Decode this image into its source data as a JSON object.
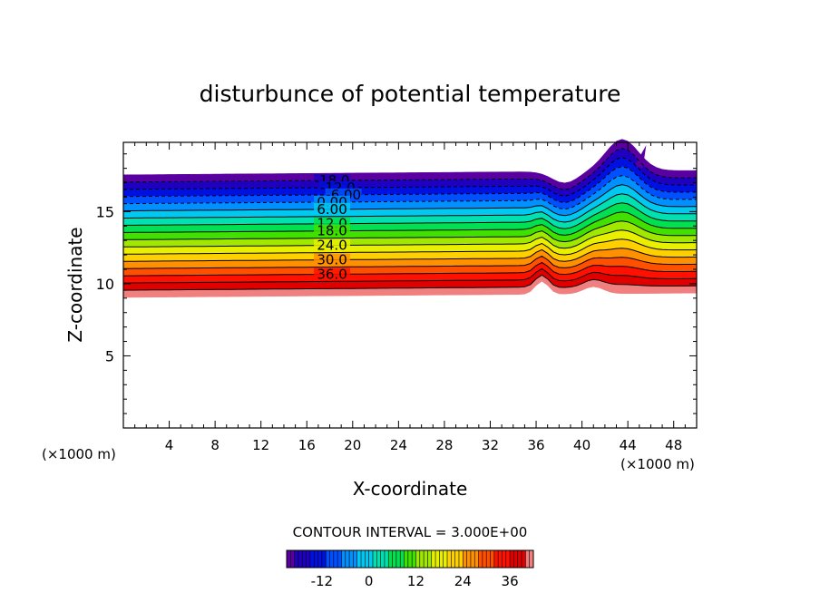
{
  "chart_data": {
    "type": "heatmap",
    "title": "disturbunce of potential temperature",
    "xlabel": "X-coordinate",
    "ylabel": "Z-coordinate",
    "x_unit": "(×1000 m)",
    "y_unit": "(×1000 m)",
    "xlim": [
      0,
      50
    ],
    "ylim": [
      0,
      19.8
    ],
    "xticks": [
      "4",
      "8",
      "12",
      "16",
      "20",
      "24",
      "28",
      "32",
      "36",
      "40",
      "44",
      "48"
    ],
    "yticks": [
      "5",
      "10",
      "15"
    ],
    "contour_interval_label": "CONTOUR INTERVAL = 3.000E+00",
    "contour_labels": [
      "-18.0",
      "-12.0",
      "-6.00",
      "0.00",
      "6.00",
      "12.0",
      "18.0",
      "24.0",
      "30.0",
      "36.0"
    ],
    "colorbar": {
      "range": [
        -21,
        42
      ],
      "ticks": [
        "-12",
        "0",
        "12",
        "24",
        "36"
      ],
      "colors": [
        "#5a00a0",
        "#2000c0",
        "#0010e0",
        "#0050ff",
        "#0090ff",
        "#00c8f0",
        "#00e0b0",
        "#00e050",
        "#40e000",
        "#a0e800",
        "#e8f000",
        "#ffd000",
        "#ff9000",
        "#ff5000",
        "#ff1000",
        "#e00000",
        "#f08080"
      ]
    },
    "field_description_levels": [
      {
        "z": 17.6,
        "value": -21
      },
      {
        "z": 16.0,
        "value": -9
      },
      {
        "z": 15.0,
        "value": 0
      },
      {
        "z": 13.5,
        "value": 12
      },
      {
        "z": 12.0,
        "value": 24
      },
      {
        "z": 10.5,
        "value": 33
      },
      {
        "z": 9.4,
        "value": 42
      }
    ]
  }
}
